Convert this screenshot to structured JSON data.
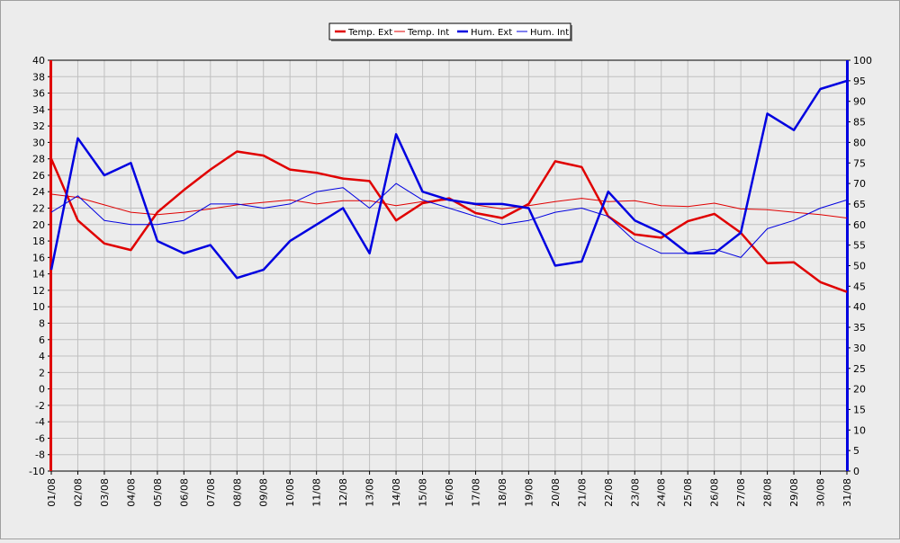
{
  "chart_data": {
    "type": "line",
    "categories": [
      "01/08",
      "02/08",
      "03/08",
      "04/08",
      "05/08",
      "06/08",
      "07/08",
      "08/08",
      "09/08",
      "10/08",
      "11/08",
      "12/08",
      "13/08",
      "14/08",
      "15/08",
      "16/08",
      "17/08",
      "18/08",
      "19/08",
      "20/08",
      "21/08",
      "22/08",
      "23/08",
      "24/08",
      "25/08",
      "26/08",
      "27/08",
      "28/08",
      "29/08",
      "30/08",
      "31/08"
    ],
    "y_left": {
      "min": -10,
      "max": 40,
      "step": 2
    },
    "y_right": {
      "min": 0,
      "max": 100,
      "step": 5
    },
    "grid": true,
    "legend_position": "top-center",
    "series": [
      {
        "name": "Temp. Ext",
        "axis": "left",
        "color": "#e00000",
        "width": "thick",
        "values": [
          28.0,
          20.5,
          17.7,
          16.9,
          21.5,
          24.2,
          26.7,
          28.9,
          28.4,
          26.7,
          26.3,
          25.6,
          25.3,
          20.5,
          22.6,
          23.2,
          21.4,
          20.8,
          22.5,
          27.7,
          27.0,
          21.0,
          18.8,
          18.4,
          20.4,
          21.3,
          19.0,
          15.3,
          15.4,
          13.0,
          11.8
        ]
      },
      {
        "name": "Temp. Int",
        "axis": "left",
        "color": "#e00000",
        "width": "thin",
        "values": [
          23.7,
          23.3,
          22.4,
          21.5,
          21.2,
          21.5,
          21.9,
          22.4,
          22.7,
          23.0,
          22.5,
          22.9,
          22.9,
          22.3,
          22.8,
          23.0,
          22.4,
          21.9,
          22.3,
          22.8,
          23.2,
          22.8,
          22.9,
          22.3,
          22.2,
          22.6,
          21.9,
          21.8,
          21.5,
          21.2,
          20.8
        ]
      },
      {
        "name": "Hum. Ext",
        "axis": "right",
        "color": "#0000e0",
        "width": "thick",
        "values": [
          49,
          81,
          72,
          75,
          56,
          53,
          55,
          47,
          49,
          56,
          60,
          64,
          53,
          82,
          68,
          66,
          65,
          65,
          64,
          50,
          51,
          68,
          61,
          58,
          53,
          53,
          58,
          87,
          83,
          93,
          95
        ]
      },
      {
        "name": "Hum. Int",
        "axis": "right",
        "color": "#0000e0",
        "width": "thin",
        "values": [
          63,
          67,
          61,
          60,
          60,
          61,
          65,
          65,
          64,
          65,
          68,
          69,
          64,
          70,
          66,
          64,
          62,
          60,
          61,
          63,
          64,
          62,
          56,
          53,
          53,
          54,
          52,
          59,
          61,
          64,
          66
        ]
      }
    ]
  }
}
